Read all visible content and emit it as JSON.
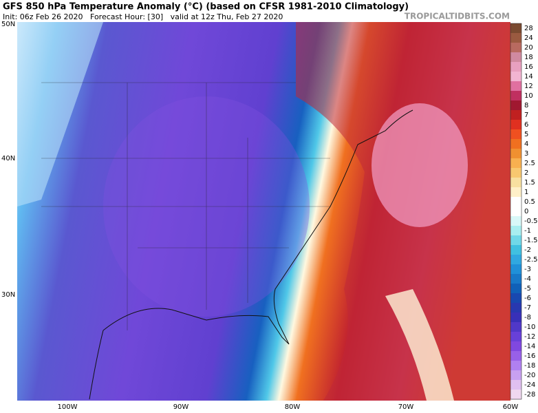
{
  "header": {
    "title": "GFS 850 hPa Temperature Anomaly (°C) (based on CFSR 1981-2010 Climatology)",
    "subtitle": "Init: 06z Feb 26 2020   Forecast Hour: [30]   valid at 12z Thu, Feb 27 2020",
    "watermark": "TROPICALTIDBITS.COM"
  },
  "map": {
    "lat_labels": [
      "50N",
      "40N",
      "30N"
    ],
    "lon_labels": [
      "100W",
      "90W",
      "80W",
      "70W",
      "60W"
    ]
  },
  "colorbar": {
    "levels": [
      {
        "value": 28,
        "color": "#7a4a30"
      },
      {
        "value": 24,
        "color": "#9a5a40"
      },
      {
        "value": 20,
        "color": "#b86a60"
      },
      {
        "value": 18,
        "color": "#d08aa0"
      },
      {
        "value": 16,
        "color": "#e8a0c0"
      },
      {
        "value": 14,
        "color": "#f2b4d2"
      },
      {
        "value": 12,
        "color": "#e070a0"
      },
      {
        "value": 10,
        "color": "#c03060"
      },
      {
        "value": 8,
        "color": "#a01830"
      },
      {
        "value": 7,
        "color": "#c02020"
      },
      {
        "value": 6,
        "color": "#e03020"
      },
      {
        "value": 5,
        "color": "#f05020"
      },
      {
        "value": 4,
        "color": "#f07020"
      },
      {
        "value": 3,
        "color": "#f09030"
      },
      {
        "value": 2.5,
        "color": "#f8b050"
      },
      {
        "value": 2,
        "color": "#f8c870"
      },
      {
        "value": 1.5,
        "color": "#f8e0a0"
      },
      {
        "value": 1,
        "color": "#fff0c8"
      },
      {
        "value": 0.5,
        "color": "#ffffff"
      },
      {
        "value": 0,
        "color": "#ffffff"
      },
      {
        "value": -0.5,
        "color": "#d8f8f8"
      },
      {
        "value": -1,
        "color": "#a8eef0"
      },
      {
        "value": -1.5,
        "color": "#70d8e8"
      },
      {
        "value": -2,
        "color": "#40c0e0"
      },
      {
        "value": -2.5,
        "color": "#30a8e0"
      },
      {
        "value": -3,
        "color": "#2090d8"
      },
      {
        "value": -4,
        "color": "#1878c8"
      },
      {
        "value": -5,
        "color": "#1060b8"
      },
      {
        "value": -6,
        "color": "#1848b0"
      },
      {
        "value": -7,
        "color": "#2838b0"
      },
      {
        "value": -8,
        "color": "#3830b8"
      },
      {
        "value": -10,
        "color": "#5038c8"
      },
      {
        "value": -12,
        "color": "#6840d8"
      },
      {
        "value": -14,
        "color": "#8048e0"
      },
      {
        "value": -16,
        "color": "#9860e8"
      },
      {
        "value": -18,
        "color": "#b080f0"
      },
      {
        "value": -20,
        "color": "#c8a0f0"
      },
      {
        "value": -24,
        "color": "#e0c0f0"
      },
      {
        "value": -28,
        "color": "#f0d8f0"
      }
    ]
  }
}
